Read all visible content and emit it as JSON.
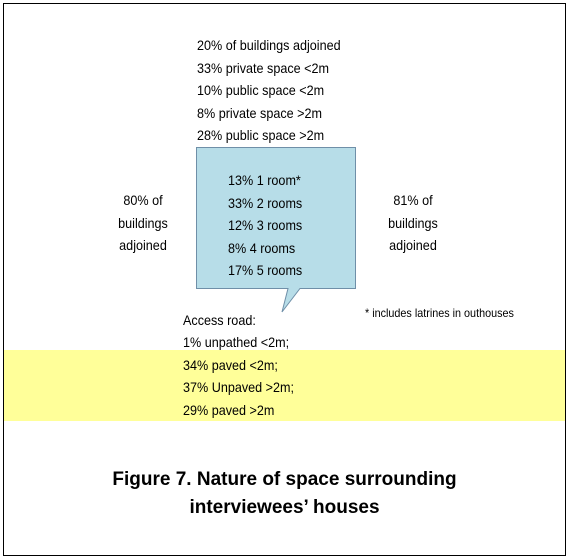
{
  "top_lines": [
    "20% of buildings adjoined",
    "33% private space <2m",
    "10% public space <2m",
    "8% private space >2m",
    "28% public space >2m"
  ],
  "box_lines": [
    "13% 1 room*",
    "33% 2 rooms",
    "12% 3 rooms",
    "8% 4 rooms",
    "17% 5 rooms"
  ],
  "left_lines": [
    "80% of",
    "buildings",
    "adjoined"
  ],
  "right_lines": [
    "81% of",
    "buildings",
    "adjoined"
  ],
  "access_road": {
    "heading": "Access road:",
    "lines": [
      "1% unpathed <2m;",
      "34% paved <2m;",
      "37% Unpaved >2m;",
      "29% paved >2m"
    ]
  },
  "note": "* includes latrines in outhouses",
  "caption": [
    "Figure 7. Nature of space surrounding",
    "interviewees’ houses"
  ]
}
